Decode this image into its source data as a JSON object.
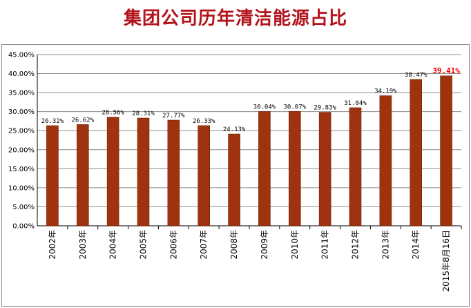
{
  "title": "集团公司历年清洁能源占比",
  "colors": {
    "bar": "#a0330f",
    "bar_edge": "#6e2208",
    "title": "#b4121b",
    "highlight_label": "#ff0000",
    "grid": "#8c8c8c"
  },
  "chart_data": {
    "type": "bar",
    "title": "集团公司历年清洁能源占比",
    "xlabel": "",
    "ylabel": "",
    "ylim": [
      0,
      45
    ],
    "yticks": [
      "0.00%",
      "5.00%",
      "10.00%",
      "15.00%",
      "20.00%",
      "25.00%",
      "30.00%",
      "35.00%",
      "40.00%",
      "45.00%"
    ],
    "grid": true,
    "categories": [
      "2002年",
      "2003年",
      "2004年",
      "2005年",
      "2006年",
      "2007年",
      "2008年",
      "2009年",
      "2010年",
      "2011年",
      "2012年",
      "2013年",
      "2014年",
      "2015年8月16日"
    ],
    "values": [
      26.32,
      26.62,
      28.56,
      28.31,
      27.77,
      26.33,
      24.13,
      30.04,
      30.07,
      29.83,
      31.04,
      34.19,
      38.47,
      39.41
    ],
    "data_labels": [
      "26.32%",
      "26.62%",
      "28.56%",
      "28.31%",
      "27.77%",
      "26.33%",
      "24.13%",
      "30.04%",
      "30.07%",
      "29.83%",
      "31.04%",
      "34.19%",
      "38.47%",
      "39.41%"
    ],
    "highlight_index": 13
  }
}
